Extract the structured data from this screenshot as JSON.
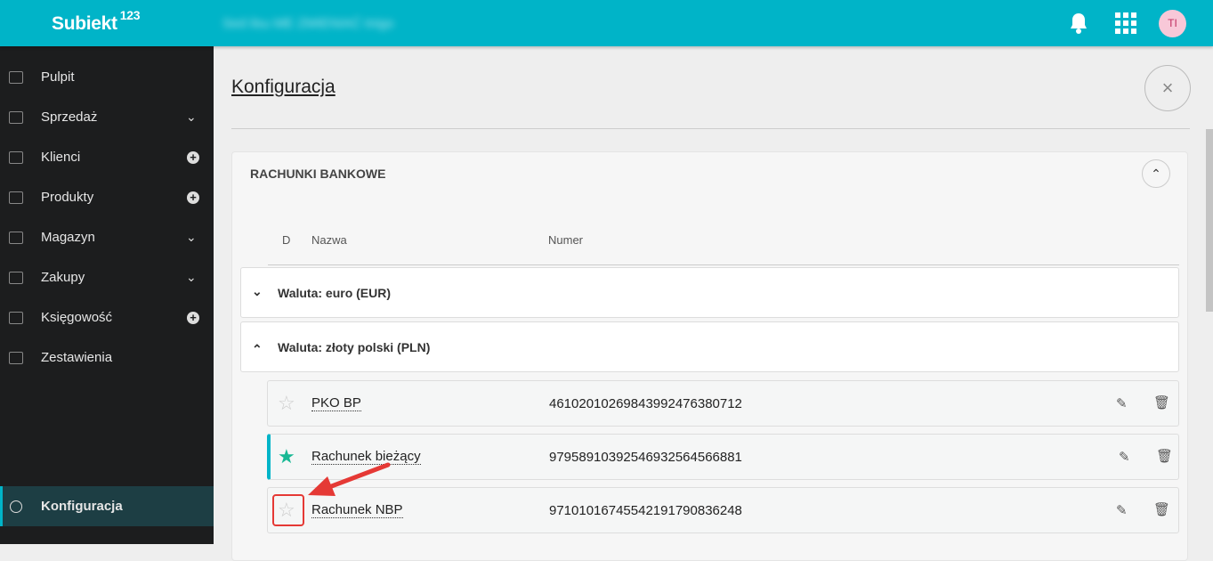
{
  "header": {
    "logo": "Subiekt",
    "logo_sup": "123",
    "company_blurred": "Sed ilsu ME ZMIENIAĆ tnigo",
    "avatar": "TI"
  },
  "sidebar": {
    "items": [
      {
        "label": "Pulpit",
        "right": ""
      },
      {
        "label": "Sprzedaż",
        "right": "chevron"
      },
      {
        "label": "Klienci",
        "right": "plus"
      },
      {
        "label": "Produkty",
        "right": "plus"
      },
      {
        "label": "Magazyn",
        "right": "chevron"
      },
      {
        "label": "Zakupy",
        "right": "chevron"
      },
      {
        "label": "Księgowość",
        "right": "plus"
      },
      {
        "label": "Zestawienia",
        "right": ""
      }
    ],
    "active": "Konfiguracja"
  },
  "main": {
    "title": "Konfiguracja",
    "close": "×",
    "section": {
      "title": "RACHUNKI BANKOWE",
      "columns": {
        "d": "D",
        "name": "Nazwa",
        "number": "Numer"
      },
      "groups": [
        {
          "label": "Waluta: euro (EUR)",
          "expanded": false
        },
        {
          "label": "Waluta: złoty polski (PLN)",
          "expanded": true
        }
      ],
      "accounts": [
        {
          "name": "PKO BP",
          "number": "46102010269843992476380712",
          "default": false
        },
        {
          "name": "Rachunek bieżący",
          "number": "97958910392546932564566881",
          "default": true
        },
        {
          "name": "Rachunek NBP",
          "number": "97101016745542191790836248",
          "default": false
        }
      ]
    }
  },
  "colors": {
    "accent": "#00b4c8",
    "default_star": "#18b894",
    "highlight": "#e53935"
  }
}
